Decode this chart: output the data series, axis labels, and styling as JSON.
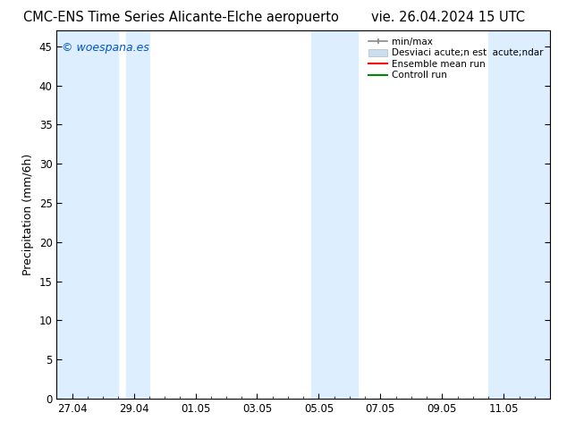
{
  "title_left": "CMC-ENS Time Series Alicante-Elche aeropuerto",
  "title_right": "vie. 26.04.2024 15 UTC",
  "ylabel": "Precipitation (mm/6h)",
  "watermark": "© woespana.es",
  "watermark_color": "#0055cc",
  "ylim": [
    0,
    47
  ],
  "yticks": [
    0,
    5,
    10,
    15,
    20,
    25,
    30,
    35,
    40,
    45
  ],
  "xtick_labels": [
    "27.04",
    "29.04",
    "01.05",
    "03.05",
    "05.05",
    "07.05",
    "09.05",
    "11.05"
  ],
  "xtick_positions": [
    0,
    2,
    4,
    6,
    8,
    10,
    12,
    14
  ],
  "xlim": [
    -0.5,
    15.5
  ],
  "shaded_regions": [
    [
      -0.5,
      1.5
    ],
    [
      1.75,
      2.5
    ],
    [
      7.75,
      9.25
    ],
    [
      13.5,
      15.5
    ]
  ],
  "band_color": "#ddeeff",
  "background_color": "#ffffff",
  "legend_label_minmax": "min/max",
  "legend_label_std": "Desviaci acute;n est  acute;ndar",
  "legend_label_ensemble": "Ensemble mean run",
  "legend_label_control": "Controll run",
  "legend_color_minmax": "#888888",
  "legend_color_std": "#ccdded",
  "legend_color_ensemble": "#ff0000",
  "legend_color_control": "#008800",
  "title_fontsize": 10.5,
  "tick_fontsize": 8.5,
  "ylabel_fontsize": 9,
  "watermark_fontsize": 9,
  "legend_fontsize": 7.5
}
